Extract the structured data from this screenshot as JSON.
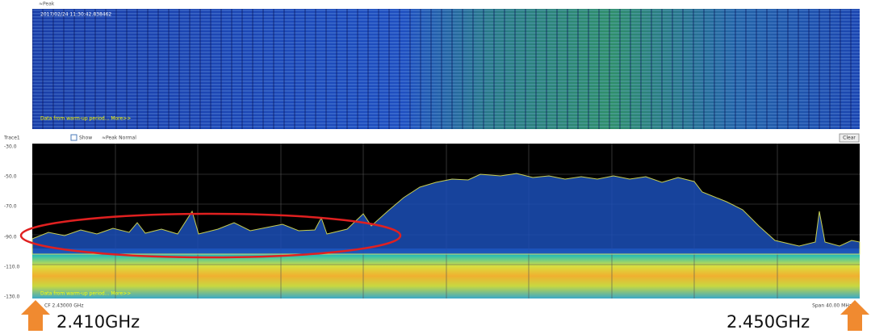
{
  "waterfall": {
    "label": "≈Peak",
    "timestamp": "2017/02/24 11:30:42.838462",
    "note": "Data from warm-up period... More>>"
  },
  "spectrum": {
    "trace": "Trace1",
    "show": "Show",
    "mode": "≈Peak Normal",
    "clear": "Clear",
    "y_labels": [
      "-30.0",
      "-50.0",
      "-70.0",
      "-90.0",
      "-110.0",
      "-130.0"
    ],
    "note": "Data from warm-up period... More>>",
    "center": "CF 2.43000 GHz",
    "span": "Span 40.00 MHz"
  },
  "annotations": {
    "left": "2.410GHz",
    "right": "2.450GHz"
  }
}
